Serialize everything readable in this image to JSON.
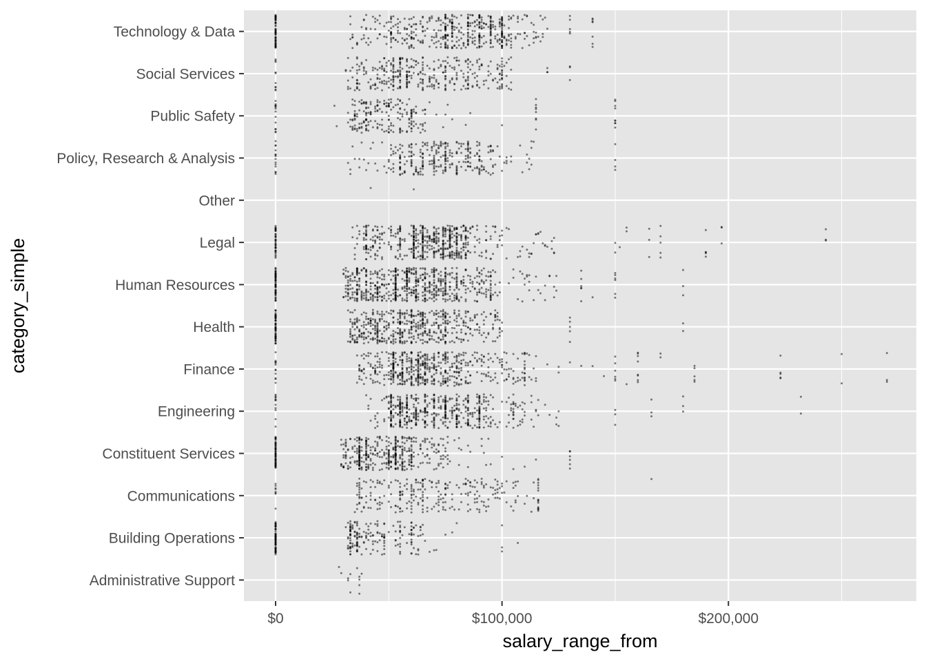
{
  "chart_data": {
    "type": "scatter",
    "title": "",
    "xlabel": "salary_range_from",
    "ylabel": "category_simple",
    "xlim": [
      -14000,
      283000
    ],
    "x_ticks": [
      0,
      100000,
      200000
    ],
    "x_tick_labels": [
      "$0",
      "$100,000",
      "$200,000"
    ],
    "x_minor_ticks": [
      50000,
      150000,
      250000
    ],
    "categories": [
      "Administrative Support",
      "Building Operations",
      "Communications",
      "Constituent Services",
      "Engineering",
      "Finance",
      "Health",
      "Human Resources",
      "Legal",
      "Other",
      "Policy, Research & Analysis",
      "Public Safety",
      "Social Services",
      "Technology & Data"
    ],
    "jitter_height": 0.4,
    "point_color": "#000000",
    "point_alpha": 0.5,
    "panel_background": "#e5e5e5",
    "grid_color": "#ffffff",
    "grid": true,
    "distribution": {
      "Administrative Support": {
        "n": 12,
        "clusters": [
          [
            28000,
            34000,
            1
          ],
          [
            36000,
            38000,
            1
          ]
        ],
        "spikes": [],
        "outliers": []
      },
      "Building Operations": {
        "n": 260,
        "clusters": [
          [
            31000,
            46000,
            5
          ],
          [
            46000,
            66000,
            2.5
          ],
          [
            66000,
            80000,
            0.3
          ]
        ],
        "spikes": [
          [
            0,
            70
          ],
          [
            33000,
            20
          ],
          [
            36000,
            15
          ],
          [
            48000,
            12
          ],
          [
            55000,
            10
          ],
          [
            60000,
            12
          ]
        ],
        "outliers": [
          75000,
          78000,
          100000,
          100000,
          100000,
          107000
        ]
      },
      "Communications": {
        "n": 280,
        "clusters": [
          [
            35000,
            50000,
            1.5
          ],
          [
            50000,
            90000,
            4
          ],
          [
            90000,
            100000,
            1
          ],
          [
            100000,
            116000,
            0.6
          ]
        ],
        "spikes": [
          [
            0,
            8
          ],
          [
            37000,
            10
          ],
          [
            55000,
            12
          ],
          [
            60000,
            10
          ],
          [
            65000,
            10
          ],
          [
            75000,
            8
          ]
        ],
        "outliers": [
          105000,
          106000,
          107000,
          116000,
          116000,
          116000,
          116000,
          116000,
          116000,
          116000,
          116000,
          116000,
          116000,
          116000,
          116000,
          116000,
          116000,
          166000
        ]
      },
      "Constituent Services": {
        "n": 500,
        "clusters": [
          [
            29000,
            40000,
            3
          ],
          [
            40000,
            62000,
            5
          ],
          [
            62000,
            76000,
            2
          ],
          [
            76000,
            95000,
            0.6
          ]
        ],
        "spikes": [
          [
            0,
            60
          ],
          [
            37000,
            30
          ],
          [
            40000,
            20
          ],
          [
            50000,
            15
          ],
          [
            53000,
            40
          ],
          [
            56000,
            20
          ],
          [
            60000,
            15
          ]
        ],
        "outliers": [
          100000,
          105000,
          110000,
          115000,
          130000,
          130000,
          130000,
          130000,
          130000,
          130000
        ]
      },
      "Engineering": {
        "n": 560,
        "clusters": [
          [
            40000,
            50000,
            0.5
          ],
          [
            50000,
            96000,
            6
          ],
          [
            96000,
            110000,
            0.8
          ],
          [
            110000,
            125000,
            0.3
          ]
        ],
        "spikes": [
          [
            0,
            12
          ],
          [
            51000,
            30
          ],
          [
            55000,
            30
          ],
          [
            58000,
            25
          ],
          [
            62000,
            20
          ],
          [
            66000,
            25
          ],
          [
            70000,
            20
          ],
          [
            75000,
            30
          ],
          [
            80000,
            25
          ],
          [
            85000,
            20
          ],
          [
            90000,
            30
          ]
        ],
        "outliers": [
          105000,
          105000,
          105000,
          105000,
          105000,
          105000,
          105000,
          105000,
          105000,
          105000,
          115000,
          125000,
          125000,
          150000,
          150000,
          150000,
          166000,
          166000,
          166000,
          180000,
          180000,
          180000,
          232000,
          232000
        ]
      },
      "Finance": {
        "n": 620,
        "clusters": [
          [
            36000,
            50000,
            1.5
          ],
          [
            50000,
            86000,
            6
          ],
          [
            86000,
            100000,
            1
          ],
          [
            100000,
            115000,
            0.8
          ]
        ],
        "spikes": [
          [
            0,
            12
          ],
          [
            52000,
            30
          ],
          [
            56000,
            20
          ],
          [
            60000,
            20
          ],
          [
            63000,
            25
          ],
          [
            66000,
            20
          ],
          [
            70000,
            15
          ],
          [
            75000,
            15
          ],
          [
            80000,
            12
          ]
        ],
        "outliers": [
          100000,
          105000,
          110000,
          110000,
          110000,
          110000,
          110000,
          110000,
          110000,
          110000,
          110000,
          110000,
          110000,
          110000,
          120000,
          125000,
          125000,
          130000,
          135000,
          140000,
          145000,
          150000,
          150000,
          150000,
          150000,
          150000,
          150000,
          155000,
          160000,
          160000,
          160000,
          160000,
          160000,
          160000,
          160000,
          160000,
          170000,
          170000,
          185000,
          185000,
          185000,
          185000,
          185000,
          223000,
          223000,
          223000,
          223000,
          223000,
          250000,
          250000,
          270000,
          270000,
          270000
        ]
      },
      "Health": {
        "n": 600,
        "clusters": [
          [
            32000,
            45000,
            3
          ],
          [
            45000,
            75000,
            6
          ],
          [
            75000,
            90000,
            2
          ],
          [
            90000,
            100000,
            0.8
          ]
        ],
        "spikes": [
          [
            0,
            60
          ],
          [
            45000,
            15
          ],
          [
            55000,
            20
          ],
          [
            60000,
            15
          ],
          [
            65000,
            15
          ],
          [
            75000,
            15
          ]
        ],
        "outliers": [
          97000,
          97000,
          97000,
          97000,
          97000,
          97000,
          130000,
          130000,
          130000,
          130000,
          130000,
          180000,
          180000
        ]
      },
      "Human Resources": {
        "n": 760,
        "clusters": [
          [
            30000,
            50000,
            4
          ],
          [
            50000,
            80000,
            6
          ],
          [
            80000,
            95000,
            2
          ],
          [
            95000,
            125000,
            1
          ]
        ],
        "spikes": [
          [
            0,
            60
          ],
          [
            36000,
            25
          ],
          [
            40000,
            15
          ],
          [
            45000,
            15
          ],
          [
            53000,
            40
          ],
          [
            58000,
            30
          ],
          [
            62000,
            20
          ],
          [
            66000,
            15
          ],
          [
            70000,
            15
          ],
          [
            75000,
            20
          ],
          [
            80000,
            15
          ],
          [
            95000,
            15
          ]
        ],
        "outliers": [
          135000,
          135000,
          135000,
          135000,
          135000,
          135000,
          140000,
          150000,
          150000,
          150000,
          150000,
          150000,
          150000,
          180000,
          180000,
          180000
        ]
      },
      "Legal": {
        "n": 640,
        "clusters": [
          [
            34000,
            60000,
            3
          ],
          [
            60000,
            86000,
            6
          ],
          [
            86000,
            100000,
            1
          ],
          [
            100000,
            125000,
            0.8
          ]
        ],
        "spikes": [
          [
            0,
            40
          ],
          [
            40000,
            15
          ],
          [
            55000,
            15
          ],
          [
            61000,
            30
          ],
          [
            65000,
            30
          ],
          [
            70000,
            20
          ],
          [
            74000,
            25
          ],
          [
            77000,
            25
          ],
          [
            80000,
            20
          ],
          [
            84000,
            15
          ]
        ],
        "outliers": [
          150000,
          150000,
          152000,
          155000,
          155000,
          165000,
          165000,
          165000,
          170000,
          170000,
          170000,
          170000,
          170000,
          190000,
          190000,
          190000,
          190000,
          190000,
          197000,
          197000,
          197000,
          243000,
          243000,
          243000
        ]
      },
      "Other": {
        "n": 2,
        "clusters": [],
        "spikes": [],
        "outliers": [
          42000,
          61000
        ]
      },
      "Policy, Research & Analysis": {
        "n": 330,
        "clusters": [
          [
            32000,
            50000,
            0.6
          ],
          [
            50000,
            95000,
            5
          ],
          [
            95000,
            115000,
            0.8
          ]
        ],
        "spikes": [
          [
            0,
            14
          ],
          [
            55000,
            12
          ],
          [
            60000,
            12
          ],
          [
            65000,
            12
          ],
          [
            70000,
            10
          ],
          [
            75000,
            15
          ],
          [
            80000,
            12
          ],
          [
            85000,
            12
          ],
          [
            90000,
            10
          ]
        ],
        "outliers": [
          150000,
          150000,
          150000,
          150000
        ]
      },
      "Public Safety": {
        "n": 240,
        "clusters": [
          [
            32000,
            45000,
            3
          ],
          [
            45000,
            66000,
            4
          ],
          [
            66000,
            90000,
            0.4
          ]
        ],
        "spikes": [
          [
            0,
            14
          ],
          [
            35000,
            10
          ],
          [
            40000,
            12
          ],
          [
            45000,
            8
          ],
          [
            50000,
            10
          ],
          [
            55000,
            10
          ],
          [
            60000,
            8
          ]
        ],
        "outliers": [
          26000,
          27000,
          100000,
          115000,
          115000,
          115000,
          115000,
          115000,
          115000,
          115000,
          115000,
          150000,
          150000,
          150000,
          150000,
          150000,
          150000,
          150000,
          150000,
          150000
        ]
      },
      "Social Services": {
        "n": 380,
        "clusters": [
          [
            31000,
            50000,
            2
          ],
          [
            50000,
            100000,
            5
          ],
          [
            100000,
            105000,
            0.3
          ]
        ],
        "spikes": [
          [
            0,
            10
          ],
          [
            36000,
            10
          ],
          [
            52000,
            15
          ],
          [
            55000,
            20
          ],
          [
            58000,
            15
          ],
          [
            65000,
            10
          ],
          [
            75000,
            10
          ],
          [
            85000,
            10
          ],
          [
            100000,
            14
          ]
        ],
        "outliers": [
          120000,
          120000,
          120000,
          130000,
          130000,
          130000
        ]
      },
      "Technology & Data": {
        "n": 560,
        "clusters": [
          [
            31000,
            50000,
            1
          ],
          [
            50000,
            105000,
            6
          ],
          [
            105000,
            120000,
            0.8
          ]
        ],
        "spikes": [
          [
            0,
            60
          ],
          [
            51000,
            10
          ],
          [
            60000,
            10
          ],
          [
            75000,
            30
          ],
          [
            78000,
            20
          ],
          [
            85000,
            20
          ],
          [
            90000,
            25
          ],
          [
            95000,
            20
          ],
          [
            100000,
            30
          ]
        ],
        "outliers": [
          130000,
          130000,
          130000,
          130000,
          130000,
          140000,
          140000,
          140000,
          140000,
          140000,
          140000,
          140000
        ]
      }
    }
  }
}
